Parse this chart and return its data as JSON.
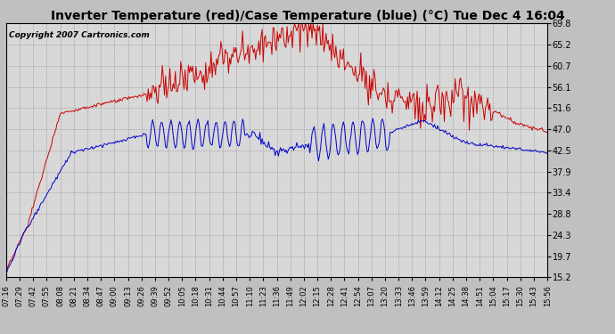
{
  "title": "Inverter Temperature (red)/Case Temperature (blue) (°C) Tue Dec 4 16:04",
  "copyright": "Copyright 2007 Cartronics.com",
  "yticks": [
    15.2,
    19.7,
    24.3,
    28.8,
    33.4,
    37.9,
    42.5,
    47.0,
    51.6,
    56.1,
    60.7,
    65.2,
    69.8
  ],
  "ylim": [
    15.2,
    69.8
  ],
  "bg_color": "#c0c0c0",
  "plot_bg_color": "#d8d8d8",
  "red_color": "#cc0000",
  "blue_color": "#0000cc",
  "title_fontsize": 10,
  "copyright_fontsize": 6.5,
  "x_labels": [
    "07:16",
    "07:29",
    "07:42",
    "07:55",
    "08:08",
    "08:21",
    "08:34",
    "08:47",
    "09:00",
    "09:13",
    "09:26",
    "09:39",
    "09:52",
    "10:05",
    "10:18",
    "10:31",
    "10:44",
    "10:57",
    "11:10",
    "11:23",
    "11:36",
    "11:49",
    "12:02",
    "12:15",
    "12:28",
    "12:41",
    "12:54",
    "13:07",
    "13:20",
    "13:33",
    "13:46",
    "13:59",
    "14:12",
    "14:25",
    "14:38",
    "14:51",
    "15:04",
    "15:17",
    "15:30",
    "15:43",
    "15:56"
  ]
}
